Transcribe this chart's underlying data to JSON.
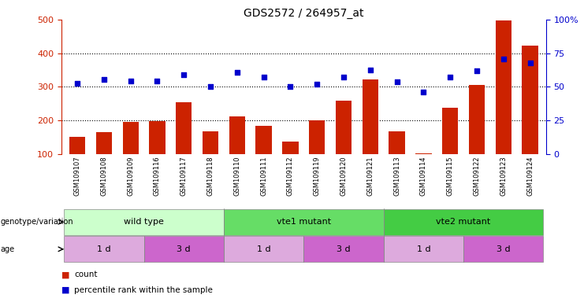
{
  "title": "GDS2572 / 264957_at",
  "samples": [
    "GSM109107",
    "GSM109108",
    "GSM109109",
    "GSM109116",
    "GSM109117",
    "GSM109118",
    "GSM109110",
    "GSM109111",
    "GSM109112",
    "GSM109119",
    "GSM109120",
    "GSM109121",
    "GSM109113",
    "GSM109114",
    "GSM109115",
    "GSM109122",
    "GSM109123",
    "GSM109124"
  ],
  "counts": [
    150,
    165,
    195,
    197,
    255,
    168,
    212,
    183,
    138,
    200,
    258,
    322,
    168,
    103,
    237,
    305,
    497,
    422
  ],
  "percentiles": [
    310,
    322,
    318,
    317,
    335,
    302,
    343,
    328,
    300,
    308,
    328,
    350,
    316,
    284,
    328,
    348,
    383,
    370
  ],
  "ylim_left": [
    100,
    500
  ],
  "yticks_left": [
    100,
    200,
    300,
    400,
    500
  ],
  "yticks_right": [
    0,
    25,
    50,
    75,
    100
  ],
  "ytick_labels_right": [
    "0",
    "25",
    "50",
    "75",
    "100%"
  ],
  "bar_color": "#cc2200",
  "dot_color": "#0000cc",
  "genotype_groups": [
    {
      "label": "wild type",
      "start": 0,
      "end": 6,
      "color": "#ccffcc"
    },
    {
      "label": "vte1 mutant",
      "start": 6,
      "end": 12,
      "color": "#66dd66"
    },
    {
      "label": "vte2 mutant",
      "start": 12,
      "end": 18,
      "color": "#44cc44"
    }
  ],
  "age_groups": [
    {
      "label": "1 d",
      "start": 0,
      "end": 3,
      "color": "#ddaadd"
    },
    {
      "label": "3 d",
      "start": 3,
      "end": 6,
      "color": "#cc66cc"
    },
    {
      "label": "1 d",
      "start": 6,
      "end": 9,
      "color": "#ddaadd"
    },
    {
      "label": "3 d",
      "start": 9,
      "end": 12,
      "color": "#cc66cc"
    },
    {
      "label": "1 d",
      "start": 12,
      "end": 15,
      "color": "#ddaadd"
    },
    {
      "label": "3 d",
      "start": 15,
      "end": 18,
      "color": "#cc66cc"
    }
  ],
  "bg_color": "#ffffff"
}
